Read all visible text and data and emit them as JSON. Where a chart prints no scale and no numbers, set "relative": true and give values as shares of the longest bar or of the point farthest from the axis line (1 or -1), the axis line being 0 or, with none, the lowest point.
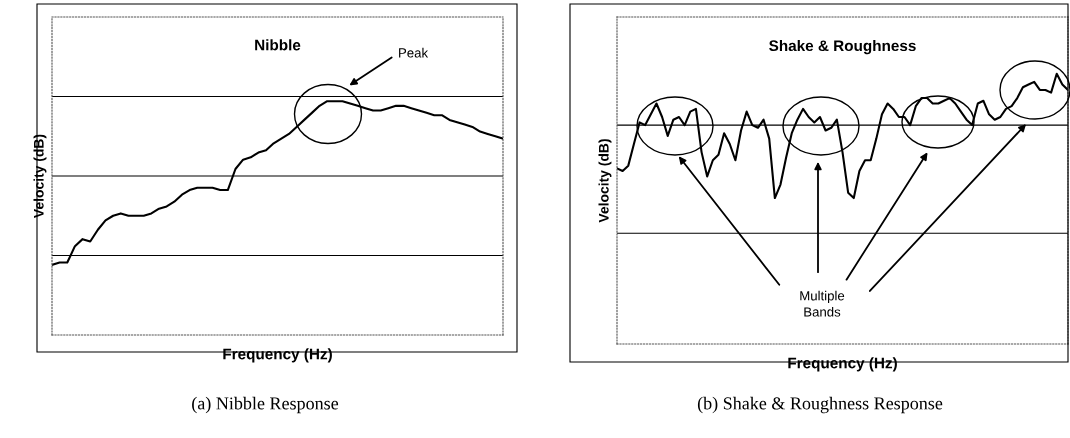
{
  "chart_data": [
    {
      "type": "line",
      "title": "Nibble",
      "xlabel": "Frequency (Hz)",
      "ylabel": "Velocity (dB)",
      "relative": true,
      "grid": false,
      "legend": false,
      "marker": "none",
      "line_style": "solid",
      "categories": [
        null,
        null,
        null,
        null,
        null,
        null,
        null,
        null,
        null,
        null,
        null,
        null,
        null,
        null,
        null,
        null,
        null,
        null,
        null,
        null,
        null,
        null,
        null,
        null,
        null,
        null,
        null,
        null,
        null,
        null,
        null,
        null,
        null,
        null,
        null,
        null,
        null,
        null,
        null,
        null,
        null,
        null,
        null,
        null,
        null,
        null,
        null,
        null,
        null,
        null,
        null,
        null,
        null,
        null,
        null,
        null,
        null,
        null,
        null,
        null
      ],
      "series": [
        {
          "color": "#000000",
          "values": [
            0.3,
            0.31,
            0.31,
            0.38,
            0.41,
            0.4,
            0.45,
            0.49,
            0.51,
            0.52,
            0.51,
            0.51,
            0.51,
            0.52,
            0.54,
            0.55,
            0.57,
            0.6,
            0.62,
            0.63,
            0.63,
            0.63,
            0.62,
            0.62,
            0.71,
            0.75,
            0.76,
            0.78,
            0.79,
            0.82,
            0.84,
            0.86,
            0.89,
            0.92,
            0.95,
            0.98,
            1.0,
            1.0,
            1.0,
            0.99,
            0.98,
            0.97,
            0.96,
            0.96,
            0.97,
            0.98,
            0.98,
            0.97,
            0.96,
            0.95,
            0.94,
            0.94,
            0.92,
            0.91,
            0.9,
            0.89,
            0.87,
            0.86,
            0.85,
            0.84
          ]
        }
      ],
      "ref_lines": [
        {
          "axis": "y",
          "value": 0.34,
          "color": "#000000"
        },
        {
          "axis": "y",
          "value": 0.68,
          "color": "#000000"
        },
        {
          "axis": "y",
          "value": 1.02,
          "color": "#000000"
        }
      ],
      "annotations": [
        "Peak",
        "(a) Nibble Response"
      ]
    },
    {
      "type": "line",
      "title": "Shake & Roughness",
      "xlabel": "Frequency (Hz)",
      "ylabel": "Velocity (dB)",
      "relative": true,
      "grid": false,
      "legend": false,
      "marker": "none",
      "line_style": "solid",
      "categories": [
        null,
        null,
        null,
        null,
        null,
        null,
        null,
        null,
        null,
        null,
        null,
        null,
        null,
        null,
        null,
        null,
        null,
        null,
        null,
        null,
        null,
        null,
        null,
        null,
        null,
        null,
        null,
        null,
        null,
        null,
        null,
        null,
        null,
        null,
        null,
        null,
        null,
        null,
        null,
        null,
        null,
        null,
        null,
        null,
        null,
        null,
        null,
        null,
        null,
        null,
        null,
        null,
        null,
        null,
        null,
        null,
        null,
        null,
        null,
        null,
        null,
        null,
        null,
        null,
        null,
        null,
        null,
        null,
        null,
        null,
        null,
        null,
        null,
        null,
        null,
        null,
        null,
        null,
        null,
        null,
        null
      ],
      "series": [
        {
          "color": "#000000",
          "values": [
            0.65,
            0.64,
            0.66,
            0.74,
            0.82,
            0.81,
            0.85,
            0.89,
            0.84,
            0.77,
            0.83,
            0.84,
            0.81,
            0.86,
            0.87,
            0.71,
            0.62,
            0.68,
            0.7,
            0.78,
            0.74,
            0.68,
            0.79,
            0.86,
            0.81,
            0.8,
            0.83,
            0.76,
            0.54,
            0.59,
            0.69,
            0.78,
            0.83,
            0.87,
            0.84,
            0.82,
            0.84,
            0.79,
            0.8,
            0.83,
            0.71,
            0.56,
            0.54,
            0.64,
            0.68,
            0.68,
            0.76,
            0.85,
            0.89,
            0.87,
            0.84,
            0.84,
            0.81,
            0.88,
            0.91,
            0.91,
            0.89,
            0.89,
            0.9,
            0.91,
            0.89,
            0.86,
            0.83,
            0.81,
            0.89,
            0.9,
            0.85,
            0.83,
            0.84,
            0.87,
            0.88,
            0.91,
            0.95,
            0.96,
            0.97,
            0.94,
            0.94,
            0.93,
            1.0,
            0.96,
            0.94
          ]
        }
      ],
      "ref_lines": [
        {
          "axis": "y",
          "value": 0.41,
          "color": "#000000"
        },
        {
          "axis": "y",
          "value": 0.81,
          "color": "#000000"
        }
      ],
      "annotations": [
        "Multiple\nBands",
        "(b) Shake & Roughness Response"
      ]
    }
  ]
}
